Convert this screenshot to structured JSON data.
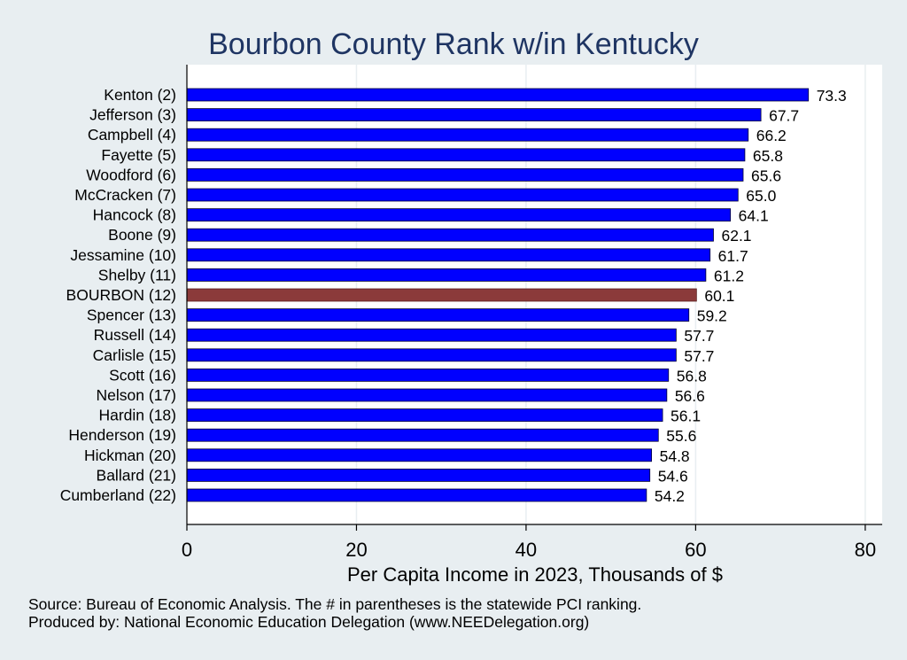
{
  "chart_data": {
    "type": "bar",
    "orientation": "horizontal",
    "title": "Bourbon County Rank w/in Kentucky",
    "xlabel": "Per Capita Income in 2023, Thousands of $",
    "xlim": [
      0,
      82
    ],
    "xticks": [
      0,
      20,
      40,
      60,
      80
    ],
    "grid": true,
    "categories": [
      "Kenton  (2)",
      "Jefferson  (3)",
      "Campbell  (4)",
      "Fayette  (5)",
      "Woodford  (6)",
      "McCracken  (7)",
      "Hancock  (8)",
      "Boone  (9)",
      "Jessamine (10)",
      "Shelby (11)",
      "BOURBON (12)",
      "Spencer (13)",
      "Russell (14)",
      "Carlisle (15)",
      "Scott (16)",
      "Nelson (17)",
      "Hardin (18)",
      "Henderson (19)",
      "Hickman (20)",
      "Ballard (21)",
      "Cumberland (22)"
    ],
    "values": [
      73.3,
      67.7,
      66.2,
      65.8,
      65.6,
      65.0,
      64.1,
      62.1,
      61.7,
      61.2,
      60.1,
      59.2,
      57.7,
      57.7,
      56.8,
      56.6,
      56.1,
      55.6,
      54.8,
      54.6,
      54.2
    ],
    "value_labels": [
      "73.3",
      "67.7",
      "66.2",
      "65.8",
      "65.6",
      "65.0",
      "64.1",
      "62.1",
      "61.7",
      "61.2",
      "60.1",
      "59.2",
      "57.7",
      "57.7",
      "56.8",
      "56.6",
      "56.1",
      "55.6",
      "54.8",
      "54.6",
      "54.2"
    ],
    "highlight_index": 10,
    "colors": {
      "bar": "#0000ff",
      "highlight": "#8b3a3a",
      "title": "#1f3563",
      "plot_bg": "#ffffff",
      "page_bg": "#e8eef1",
      "grid": "#e8eef1"
    }
  },
  "notes": {
    "source": "Source: Bureau of Economic Analysis. The # in parentheses is the statewide PCI ranking.",
    "produced_by": "Produced by: National Economic Education Delegation (www.NEEDelegation.org)"
  }
}
